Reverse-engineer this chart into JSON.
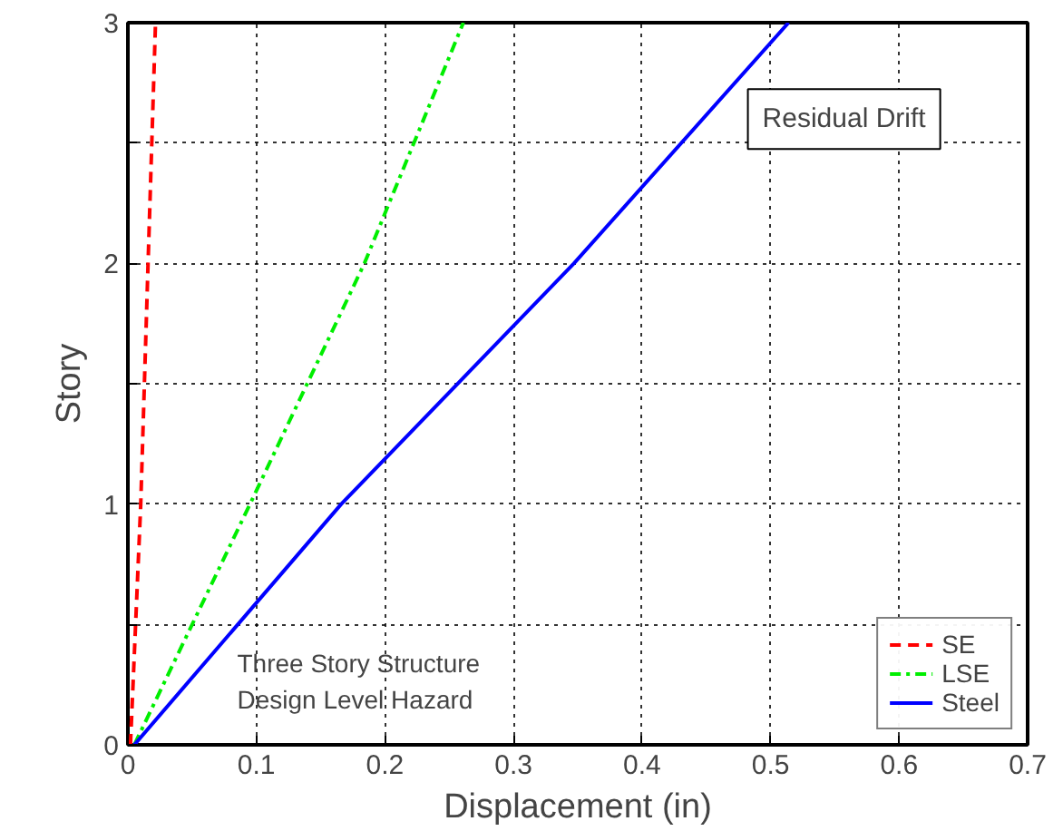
{
  "chart_data": {
    "type": "line",
    "xlabel": "Displacement (in)",
    "ylabel": "Story",
    "series": [
      {
        "name": "SE",
        "color": "#ff0000",
        "line_style": "dashed",
        "x": [
          0.002,
          0.01,
          0.0157,
          0.0215
        ],
        "values": [
          0,
          1,
          2,
          3
        ]
      },
      {
        "name": "LSE",
        "color": "#00ee00",
        "line_style": "dashdot",
        "x": [
          0.005,
          0.095,
          0.184,
          0.261
        ],
        "values": [
          0,
          1,
          2,
          3
        ]
      },
      {
        "name": "Steel",
        "color": "#0000ff",
        "line_style": "solid",
        "x": [
          0.005,
          0.166,
          0.347,
          0.514
        ],
        "values": [
          0,
          1,
          2,
          3
        ]
      }
    ],
    "xlim": [
      0,
      0.7
    ],
    "xticks": [
      0,
      0.1,
      0.2,
      0.3,
      0.4,
      0.5,
      0.6,
      0.7
    ],
    "ylim": [
      0,
      3
    ],
    "yticks": [
      0,
      {
        "value": 0.5,
        "label": null
      },
      1,
      {
        "value": 1.5,
        "label": null
      },
      2,
      {
        "value": 2.5,
        "label": null
      },
      3
    ],
    "grid": true,
    "legend": "bottom right",
    "marker": "none",
    "annotations": [
      "Residual Drift",
      "Three Story Structure",
      "Design Level Hazard"
    ]
  }
}
